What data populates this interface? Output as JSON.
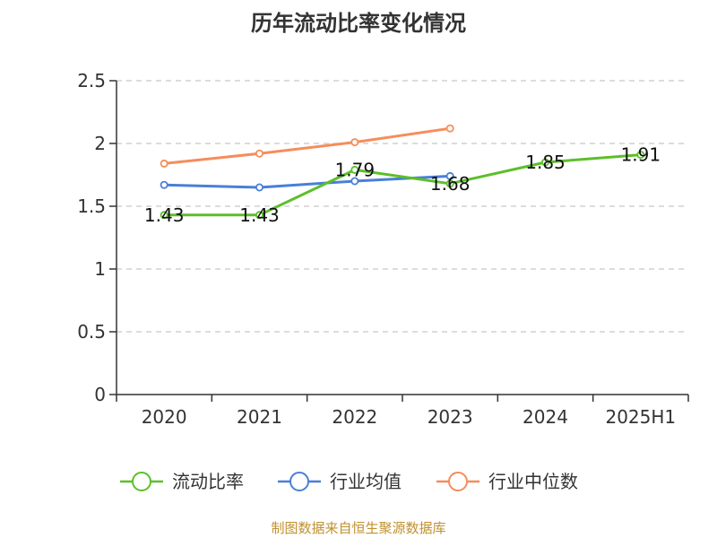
{
  "chart_data": {
    "type": "line",
    "title": "历年流动比率变化情况",
    "categories": [
      "2020",
      "2021",
      "2022",
      "2023",
      "2024",
      "2025H1"
    ],
    "ylim": [
      0,
      2.5
    ],
    "yticks": [
      "0",
      "0.5",
      "1",
      "1.5",
      "2",
      "2.5"
    ],
    "grid": true,
    "legend_position": "bottom",
    "series": [
      {
        "name": "流动比率",
        "color": "#5cbf2a",
        "values": [
          1.43,
          1.43,
          1.79,
          1.68,
          1.85,
          1.91
        ],
        "labels": [
          "1.43",
          "1.43",
          "1.79",
          "1.68",
          "1.85",
          "1.91"
        ]
      },
      {
        "name": "行业均值",
        "color": "#4a7fd8",
        "values": [
          1.67,
          1.65,
          1.7,
          1.74,
          null,
          null
        ]
      },
      {
        "name": "行业中位数",
        "color": "#f58d5c",
        "values": [
          1.84,
          1.92,
          2.01,
          2.12,
          null,
          null
        ]
      }
    ]
  },
  "source": "制图数据来自恒生聚源数据库"
}
